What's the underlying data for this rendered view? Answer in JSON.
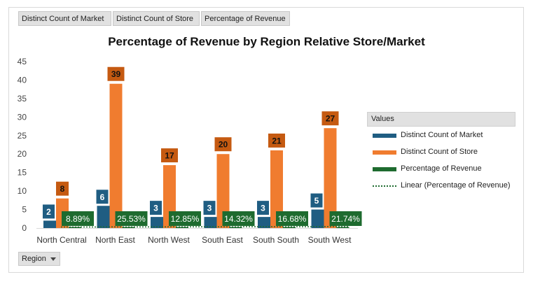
{
  "field_buttons": [
    "Distinct Count of Market",
    "Distinct Count of Store",
    "Percentage of Revenue"
  ],
  "axis_field_button": {
    "label": "Region",
    "icon": "dropdown-arrow-icon"
  },
  "legend": {
    "title": "Values"
  },
  "colors": {
    "market": "#1f5d82",
    "store": "#f07c2f",
    "store_label": "#c55a11",
    "revenue": "#1e6b2f",
    "trend": "#1e6b2f"
  },
  "chart_data": {
    "type": "bar",
    "title": "Percentage of Revenue by Region Relative Store/Market",
    "categories": [
      "North Central",
      "North East",
      "North West",
      "South East",
      "South South",
      "South West"
    ],
    "ylim": [
      0,
      45
    ],
    "yticks": [
      0,
      5,
      10,
      15,
      20,
      25,
      30,
      35,
      40,
      45
    ],
    "grid": false,
    "legend_position": "right",
    "series": [
      {
        "name": "Distinct Count of Market",
        "values": [
          2,
          6,
          3,
          3,
          3,
          5
        ],
        "labels": [
          "2",
          "6",
          "3",
          "3",
          "3",
          "5"
        ]
      },
      {
        "name": "Distinct Count of Store",
        "values": [
          8,
          39,
          17,
          20,
          21,
          27
        ],
        "labels": [
          "8",
          "39",
          "17",
          "20",
          "21",
          "27"
        ]
      },
      {
        "name": "Percentage of Revenue",
        "values": [
          0.0889,
          0.2553,
          0.1285,
          0.1432,
          0.1668,
          0.2174
        ],
        "labels": [
          "8.89%",
          "25.53%",
          "12.85%",
          "14.32%",
          "16.68%",
          "21.74%"
        ]
      },
      {
        "name": "Linear (Percentage of Revenue)",
        "type": "trendline"
      }
    ]
  }
}
